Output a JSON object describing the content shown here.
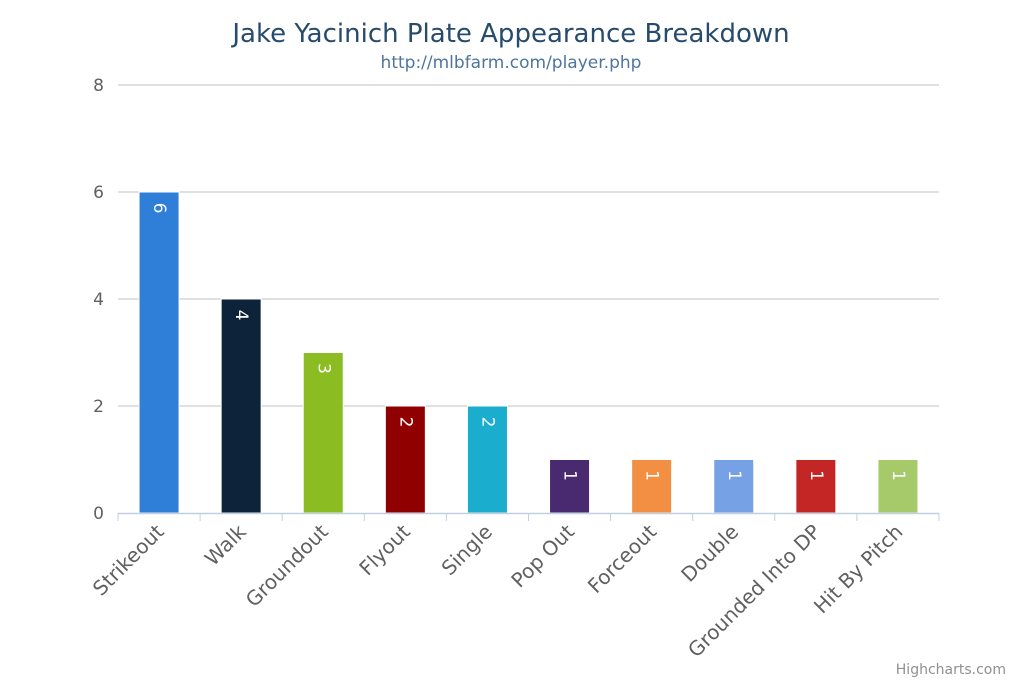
{
  "chart_data": {
    "type": "bar",
    "title": "Jake Yacinich Plate Appearance Breakdown",
    "subtitle": "http://mlbfarm.com/player.php",
    "categories": [
      "Strikeout",
      "Walk",
      "Groundout",
      "Flyout",
      "Single",
      "Pop Out",
      "Forceout",
      "Double",
      "Grounded Into DP",
      "Hit By Pitch"
    ],
    "values": [
      6,
      4,
      3,
      2,
      2,
      1,
      1,
      1,
      1,
      1
    ],
    "colors": [
      "#2f7ed8",
      "#0d233a",
      "#8bbc21",
      "#910000",
      "#1aadce",
      "#492970",
      "#f28f43",
      "#77a1e5",
      "#c42525",
      "#a6c96a"
    ],
    "ylim": [
      0,
      8
    ],
    "yticks": [
      0,
      2,
      4,
      6,
      8
    ],
    "xlabel": "",
    "ylabel": "",
    "grid": true,
    "data_labels": true,
    "legend": "none"
  },
  "credits": "Highcharts.com"
}
